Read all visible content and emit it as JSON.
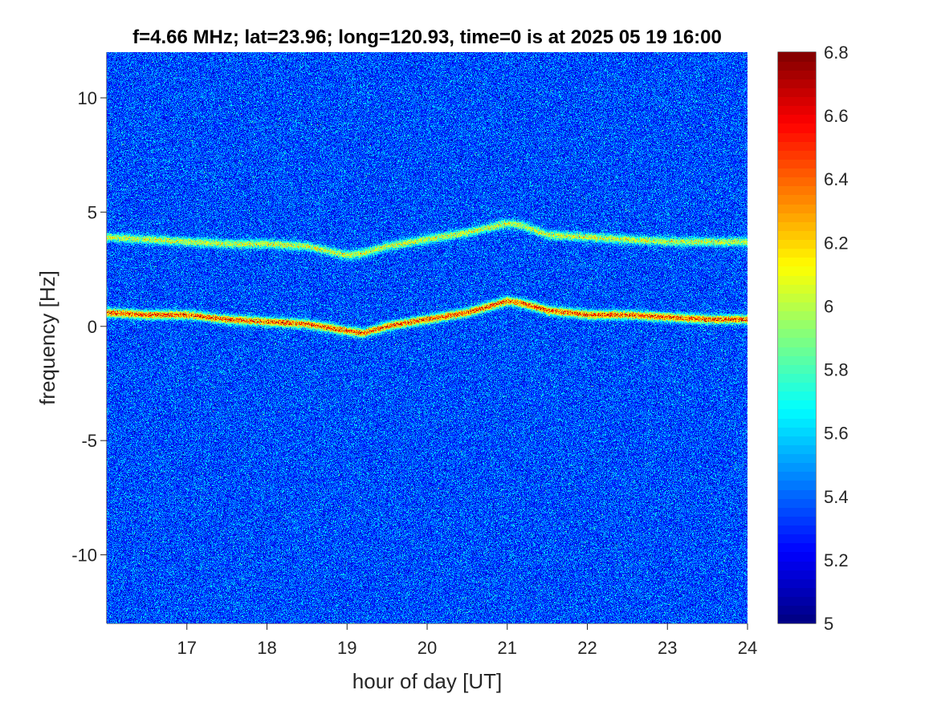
{
  "chart_data": {
    "type": "heatmap",
    "title": "f=4.66 MHz;  lat=23.96; long=120.93, time=0 is at 2025 05 19 16:00",
    "xlabel": "hour of day [UT]",
    "ylabel": "frequency [Hz]",
    "xlim": [
      16,
      24
    ],
    "ylim": [
      -13,
      12
    ],
    "xticks": [
      17,
      18,
      19,
      20,
      21,
      22,
      23,
      24
    ],
    "xtick_labels": [
      "17",
      "18",
      "19",
      "20",
      "21",
      "22",
      "23",
      "24"
    ],
    "yticks": [
      -10,
      -5,
      0,
      5,
      10
    ],
    "ytick_labels": [
      "-10",
      "-5",
      "0",
      "5",
      "10"
    ],
    "colormap": "jet",
    "clim": [
      5,
      6.8
    ],
    "colorbar_ticks": [
      5,
      5.2,
      5.4,
      5.6,
      5.8,
      6,
      6.2,
      6.4,
      6.6,
      6.8
    ],
    "colorbar_tick_labels": [
      "5",
      "5.2",
      "5.4",
      "5.6",
      "5.8",
      "6",
      "6.2",
      "6.4",
      "6.6",
      "6.8"
    ],
    "background_level": 5.35,
    "traces": [
      {
        "name": "upper trace",
        "x": [
          16.0,
          16.5,
          17.0,
          17.5,
          18.0,
          18.5,
          19.0,
          19.2,
          19.5,
          20.0,
          20.5,
          21.0,
          21.2,
          21.5,
          22.0,
          22.5,
          23.0,
          23.5,
          24.0
        ],
        "y": [
          3.9,
          3.8,
          3.7,
          3.6,
          3.6,
          3.5,
          3.1,
          3.2,
          3.5,
          3.8,
          4.1,
          4.5,
          4.4,
          4.0,
          3.9,
          3.8,
          3.7,
          3.7,
          3.7
        ],
        "peak": 6.2
      },
      {
        "name": "lower trace",
        "x": [
          16.0,
          16.5,
          17.0,
          17.5,
          18.0,
          18.5,
          19.0,
          19.2,
          19.5,
          20.0,
          20.5,
          21.0,
          21.2,
          21.5,
          22.0,
          22.5,
          23.0,
          23.5,
          24.0
        ],
        "y": [
          0.6,
          0.5,
          0.5,
          0.3,
          0.2,
          0.1,
          -0.2,
          -0.3,
          0.0,
          0.3,
          0.6,
          1.1,
          1.0,
          0.7,
          0.5,
          0.5,
          0.4,
          0.3,
          0.3
        ],
        "peak": 6.7
      }
    ]
  }
}
